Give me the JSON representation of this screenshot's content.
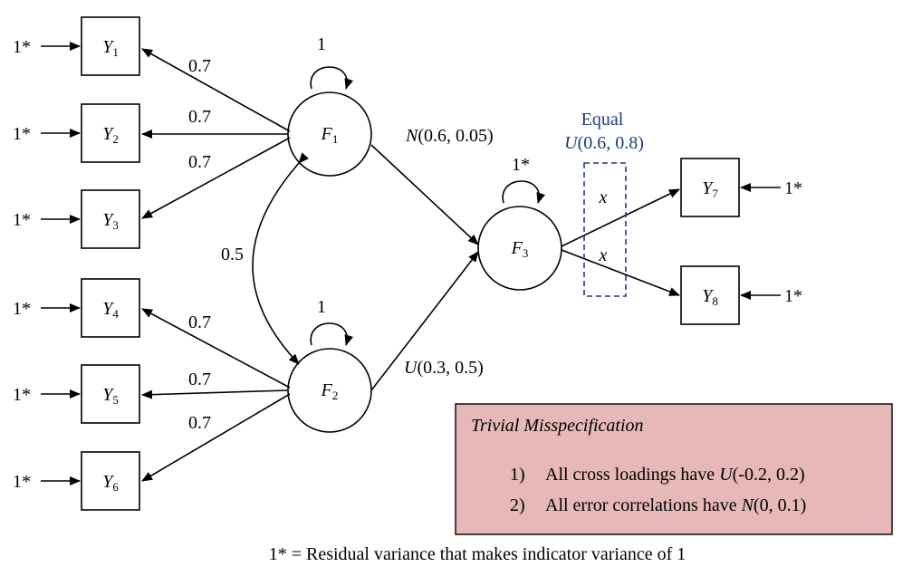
{
  "indicators": [
    {
      "letter": "Y",
      "sub": "1"
    },
    {
      "letter": "Y",
      "sub": "2"
    },
    {
      "letter": "Y",
      "sub": "3"
    },
    {
      "letter": "Y",
      "sub": "4"
    },
    {
      "letter": "Y",
      "sub": "5"
    },
    {
      "letter": "Y",
      "sub": "6"
    },
    {
      "letter": "Y",
      "sub": "7"
    },
    {
      "letter": "Y",
      "sub": "8"
    }
  ],
  "residual_label": "1*",
  "factors": [
    {
      "letter": "F",
      "sub": "1"
    },
    {
      "letter": "F",
      "sub": "2"
    },
    {
      "letter": "F",
      "sub": "3"
    }
  ],
  "variance_labels": {
    "f1": "1",
    "f2": "1",
    "f3": "1*"
  },
  "loadings": {
    "f1": [
      "0.7",
      "0.7",
      "0.7"
    ],
    "f2": [
      "0.7",
      "0.7",
      "0.7"
    ]
  },
  "factor_correlation": "0.5",
  "path_f1_f3": {
    "dist": "N",
    "args": "(0.6, 0.05)"
  },
  "path_f2_f3": {
    "dist": "U",
    "args": "(0.3, 0.5)"
  },
  "f3_loadings": {
    "equal_label": "Equal",
    "dist": "U",
    "args": "(0.6, 0.8)",
    "symbol": "x"
  },
  "misspecification": {
    "title": "Trivial Misspecification",
    "items": [
      {
        "num": "1)",
        "text": "All cross loadings have ",
        "dist": "U",
        "args": "(-0.2, 0.2)"
      },
      {
        "num": "2)",
        "text": "All error correlations have ",
        "dist": "N",
        "args": "(0, 0.1)"
      }
    ]
  },
  "footnote": "1* = Residual variance that makes indicator variance of 1",
  "colors": {
    "note_fill": "#e6b8b7",
    "equal_text": "#1f3b73",
    "dashed_box": "#1f3b73"
  }
}
